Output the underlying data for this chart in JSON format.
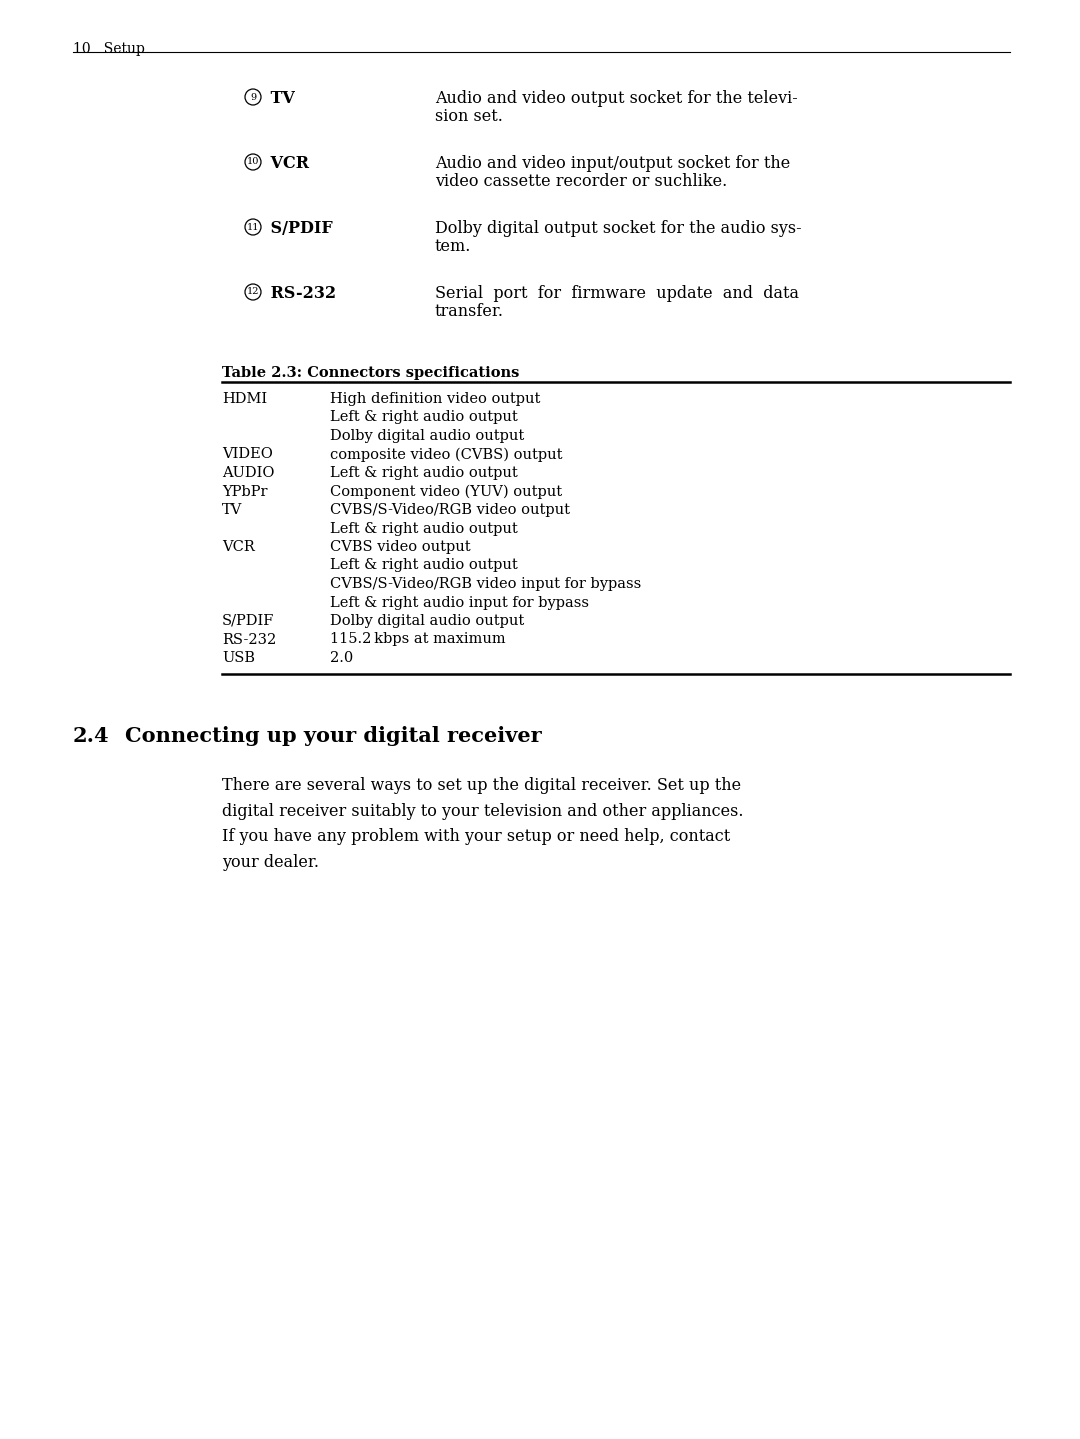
{
  "bg_color": "#ffffff",
  "page_width": 10.8,
  "page_height": 14.39,
  "dpi": 100,
  "header_text": "10   Setup",
  "items": [
    {
      "num": "9",
      "label": " TV",
      "desc_line1": "Audio and video output socket for the televi-",
      "desc_line2": "sion set."
    },
    {
      "num": "10",
      "label": " VCR",
      "desc_line1": "Audio and video input/output socket for the",
      "desc_line2": "video cassette recorder or suchlike."
    },
    {
      "num": "11",
      "label": " S/PDIF",
      "desc_line1": "Dolby digital output socket for the audio sys-",
      "desc_line2": "tem."
    },
    {
      "num": "12",
      "label": " RS-232",
      "desc_line1": "Serial  port  for  firmware  update  and  data",
      "desc_line2": "transfer."
    }
  ],
  "table_caption": "Table 2.3: Connectors specifications",
  "table_rows": [
    {
      "label": "HDMI",
      "desc": "High definition video output"
    },
    {
      "label": "",
      "desc": "Left & right audio output"
    },
    {
      "label": "",
      "desc": "Dolby digital audio output"
    },
    {
      "label": "VIDEO",
      "desc": "composite video (CVBS) output"
    },
    {
      "label": "AUDIO",
      "desc": "Left & right audio output"
    },
    {
      "label": "YPbPr",
      "desc": "Component video (YUV) output"
    },
    {
      "label": "TV",
      "desc": "CVBS/S-Video/RGB video output"
    },
    {
      "label": "",
      "desc": "Left & right audio output"
    },
    {
      "label": "VCR",
      "desc": "CVBS video output"
    },
    {
      "label": "",
      "desc": "Left & right audio output"
    },
    {
      "label": "",
      "desc": "CVBS/S-Video/RGB video input for bypass"
    },
    {
      "label": "",
      "desc": "Left & right audio input for bypass"
    },
    {
      "label": "S/PDIF",
      "desc": "Dolby digital audio output"
    },
    {
      "label": "RS-232",
      "desc": "115.2 kbps at maximum"
    },
    {
      "label": "USB",
      "desc": "2.0"
    }
  ],
  "section_num": "2.4",
  "section_title": "Connecting up your digital receiver",
  "body_text": "There are several ways to set up the digital receiver. Set up the\ndigital receiver suitably to your television and other appliances.\nIf you have any problem with your setup or need help, contact\nyour dealer."
}
